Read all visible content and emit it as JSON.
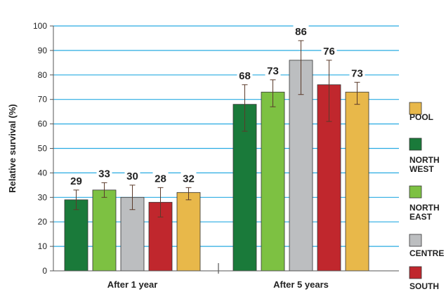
{
  "chart_data": {
    "type": "bar",
    "ylabel": "Relative survival (%)",
    "ylim": [
      0,
      100
    ],
    "yticks": [
      0,
      10,
      20,
      30,
      40,
      50,
      60,
      70,
      80,
      90,
      100
    ],
    "grid": "horizontal",
    "legend_position": "right",
    "categories": [
      "After 1 year",
      "After 5 years"
    ],
    "series": [
      {
        "name": "NORTH WEST",
        "color": "#1a7a3a",
        "values": [
          29,
          68
        ],
        "error_low": [
          25,
          57
        ],
        "error_high": [
          33,
          76
        ]
      },
      {
        "name": "NORTH EAST",
        "color": "#7dc142",
        "values": [
          33,
          73
        ],
        "error_low": [
          30,
          67
        ],
        "error_high": [
          36,
          78
        ]
      },
      {
        "name": "CENTRE",
        "color": "#bcbec0",
        "values": [
          30,
          86
        ],
        "error_low": [
          25,
          72
        ],
        "error_high": [
          35,
          94
        ]
      },
      {
        "name": "SOUTH",
        "color": "#c0272d",
        "values": [
          28,
          76
        ],
        "error_low": [
          22,
          61
        ],
        "error_high": [
          34,
          86
        ]
      },
      {
        "name": "POOL",
        "color": "#e8b84a",
        "values": [
          32,
          73
        ],
        "error_low": [
          29,
          68
        ],
        "error_high": [
          34,
          77
        ]
      }
    ],
    "data_labels": [
      [
        "29",
        "33",
        "30",
        "28",
        "32"
      ],
      [
        "68",
        "73",
        "86",
        "76",
        "73"
      ]
    ],
    "legend_order": [
      "POOL",
      "NORTH WEST",
      "NORTH EAST",
      "CENTRE",
      "SOUTH"
    ],
    "legend_labels": {
      "POOL": [
        "POOL"
      ],
      "NORTH WEST": [
        "NORTH",
        "WEST"
      ],
      "NORTH EAST": [
        "NORTH",
        "EAST"
      ],
      "CENTRE": [
        "CENTRE"
      ],
      "SOUTH": [
        "SOUTH"
      ]
    },
    "colors": {
      "grid": "#29abe2",
      "axis": "#555555",
      "error_bar": "#5a3a2a"
    }
  }
}
